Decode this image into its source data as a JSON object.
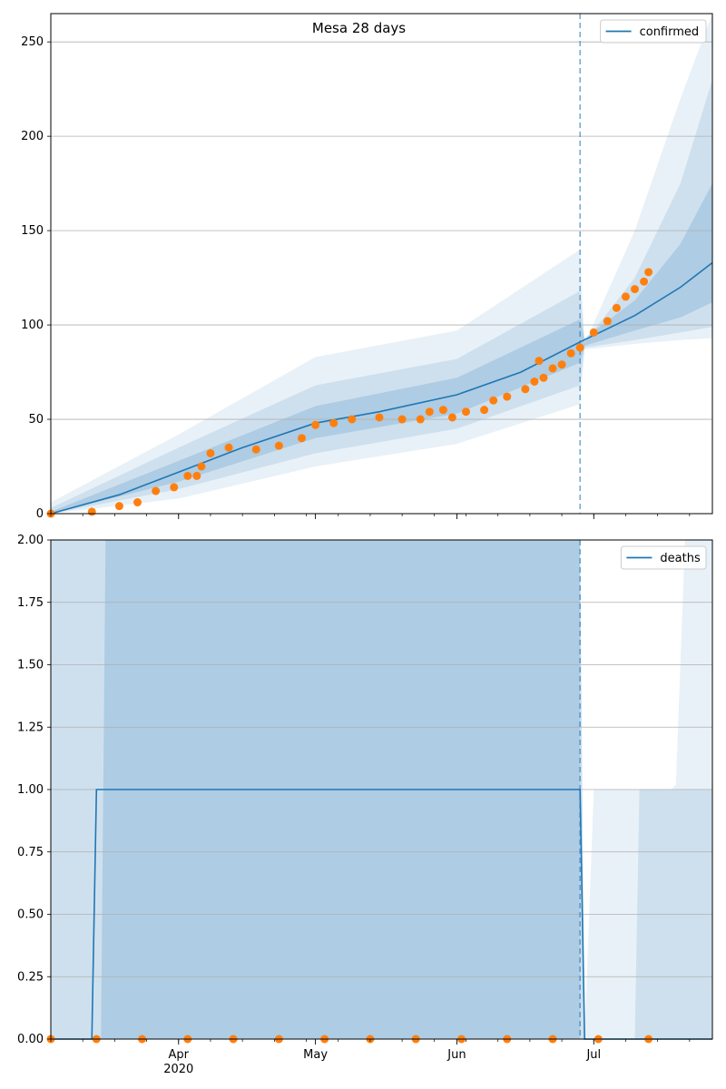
{
  "chart_data": [
    {
      "type": "line",
      "title": "Mesa 28 days",
      "xlabel": "",
      "ylabel": "",
      "x_ticks": [
        {
          "label": "Apr",
          "date": "2020-04-01"
        },
        {
          "label": "May",
          "date": "2020-05-01"
        },
        {
          "label": "Jun",
          "date": "2020-06-01"
        },
        {
          "label": "Jul",
          "date": "2020-07-01"
        }
      ],
      "x_year_label": "2020",
      "xlim": [
        "2020-03-04",
        "2020-07-27"
      ],
      "ylim": [
        0,
        265
      ],
      "y_ticks": [
        "0",
        "50",
        "100",
        "150",
        "200",
        "250"
      ],
      "grid": "horizontal",
      "legend_position": "top-right",
      "forecast_start": "2020-06-28",
      "colors": {
        "line": "#1f77b4",
        "points": "#ff7f0e",
        "band": "#1f77b4",
        "grid": "#b0b0b0"
      },
      "series": [
        {
          "name": "confirmed",
          "kind": "model-line",
          "points": [
            [
              "2020-03-04",
              0
            ],
            [
              "2020-03-19",
              10
            ],
            [
              "2020-04-01",
              22
            ],
            [
              "2020-04-15",
              35
            ],
            [
              "2020-05-01",
              48
            ],
            [
              "2020-05-15",
              54
            ],
            [
              "2020-06-01",
              63
            ],
            [
              "2020-06-15",
              75
            ],
            [
              "2020-06-28",
              91
            ],
            [
              "2020-07-10",
              105
            ],
            [
              "2020-07-20",
              120
            ],
            [
              "2020-07-27",
              133
            ]
          ]
        },
        {
          "kind": "observed",
          "points": [
            [
              "2020-03-04",
              0
            ],
            [
              "2020-03-13",
              1
            ],
            [
              "2020-03-19",
              4
            ],
            [
              "2020-03-23",
              6
            ],
            [
              "2020-03-27",
              12
            ],
            [
              "2020-03-31",
              14
            ],
            [
              "2020-04-03",
              20
            ],
            [
              "2020-04-05",
              20
            ],
            [
              "2020-04-06",
              25
            ],
            [
              "2020-04-08",
              32
            ],
            [
              "2020-04-12",
              35
            ],
            [
              "2020-04-18",
              34
            ],
            [
              "2020-04-23",
              36
            ],
            [
              "2020-04-28",
              40
            ],
            [
              "2020-05-01",
              47
            ],
            [
              "2020-05-05",
              48
            ],
            [
              "2020-05-09",
              50
            ],
            [
              "2020-05-15",
              51
            ],
            [
              "2020-05-20",
              50
            ],
            [
              "2020-05-24",
              50
            ],
            [
              "2020-05-26",
              54
            ],
            [
              "2020-05-29",
              55
            ],
            [
              "2020-05-31",
              51
            ],
            [
              "2020-06-03",
              54
            ],
            [
              "2020-06-07",
              55
            ],
            [
              "2020-06-09",
              60
            ],
            [
              "2020-06-12",
              62
            ],
            [
              "2020-06-16",
              66
            ],
            [
              "2020-06-18",
              70
            ],
            [
              "2020-06-19",
              81
            ],
            [
              "2020-06-20",
              72
            ],
            [
              "2020-06-22",
              77
            ],
            [
              "2020-06-24",
              79
            ],
            [
              "2020-06-26",
              85
            ],
            [
              "2020-06-28",
              88
            ],
            [
              "2020-07-01",
              96
            ],
            [
              "2020-07-04",
              102
            ],
            [
              "2020-07-06",
              109
            ],
            [
              "2020-07-08",
              115
            ],
            [
              "2020-07-10",
              119
            ],
            [
              "2020-07-12",
              123
            ],
            [
              "2020-07-13",
              128
            ]
          ]
        }
      ],
      "bands": [
        {
          "level": "outer",
          "dates": [
            "2020-03-04",
            "2020-04-01",
            "2020-05-01",
            "2020-06-01",
            "2020-06-28",
            "2020-06-29",
            "2020-07-10",
            "2020-07-20",
            "2020-07-27"
          ],
          "low": [
            0,
            8,
            25,
            37,
            58,
            87,
            90,
            92,
            93
          ],
          "high": [
            6,
            42,
            83,
            97,
            140,
            90,
            150,
            220,
            265
          ]
        },
        {
          "level": "mid",
          "dates": [
            "2020-03-04",
            "2020-04-01",
            "2020-05-01",
            "2020-06-01",
            "2020-06-28",
            "2020-06-29",
            "2020-07-10",
            "2020-07-20",
            "2020-07-27"
          ],
          "low": [
            0,
            13,
            32,
            45,
            68,
            88,
            92,
            96,
            99
          ],
          "high": [
            3,
            35,
            68,
            82,
            118,
            91,
            125,
            175,
            230
          ]
        },
        {
          "level": "inner",
          "dates": [
            "2020-03-04",
            "2020-04-01",
            "2020-05-01",
            "2020-06-01",
            "2020-06-28",
            "2020-06-29",
            "2020-07-10",
            "2020-07-20",
            "2020-07-27"
          ],
          "low": [
            0,
            17,
            40,
            53,
            80,
            89,
            97,
            104,
            112
          ],
          "high": [
            1,
            28,
            57,
            72,
            103,
            93,
            113,
            143,
            175
          ]
        }
      ]
    },
    {
      "type": "line",
      "title": "",
      "xlabel": "",
      "ylabel": "",
      "x_ticks": [
        {
          "label": "Apr",
          "date": "2020-04-01"
        },
        {
          "label": "May",
          "date": "2020-05-01"
        },
        {
          "label": "Jun",
          "date": "2020-06-01"
        },
        {
          "label": "Jul",
          "date": "2020-07-01"
        }
      ],
      "x_year_label": "2020",
      "xlim": [
        "2020-03-04",
        "2020-07-27"
      ],
      "ylim": [
        0,
        2
      ],
      "y_ticks": [
        "0.00",
        "0.25",
        "0.50",
        "0.75",
        "1.00",
        "1.25",
        "1.50",
        "1.75",
        "2.00"
      ],
      "grid": "horizontal",
      "legend_position": "top-right",
      "forecast_start": "2020-06-28",
      "colors": {
        "line": "#1f77b4",
        "points": "#ff7f0e",
        "band": "#1f77b4",
        "grid": "#b0b0b0"
      },
      "series": [
        {
          "name": "deaths",
          "kind": "model-line",
          "points": [
            [
              "2020-03-04",
              0
            ],
            [
              "2020-03-13",
              0
            ],
            [
              "2020-03-14",
              1
            ],
            [
              "2020-06-28",
              1
            ],
            [
              "2020-06-29",
              0
            ],
            [
              "2020-07-27",
              0
            ]
          ]
        },
        {
          "kind": "observed",
          "points": [
            [
              "2020-03-04",
              0
            ],
            [
              "2020-03-14",
              0
            ],
            [
              "2020-03-24",
              0
            ],
            [
              "2020-04-03",
              0
            ],
            [
              "2020-04-13",
              0
            ],
            [
              "2020-04-23",
              0
            ],
            [
              "2020-05-03",
              0
            ],
            [
              "2020-05-13",
              0
            ],
            [
              "2020-05-23",
              0
            ],
            [
              "2020-06-02",
              0
            ],
            [
              "2020-06-12",
              0
            ],
            [
              "2020-06-22",
              0
            ],
            [
              "2020-07-02",
              0
            ],
            [
              "2020-07-13",
              0
            ]
          ]
        }
      ],
      "bands": [
        {
          "level": "outer",
          "dates": [
            "2020-03-04",
            "2020-03-15",
            "2020-03-16",
            "2020-06-28",
            "2020-06-29",
            "2020-07-01",
            "2020-07-18",
            "2020-07-19",
            "2020-07-21",
            "2020-07-27"
          ],
          "low": [
            0,
            0,
            0,
            0,
            0,
            0,
            0,
            0,
            0,
            0
          ],
          "high": [
            2,
            2,
            2,
            2,
            0,
            1,
            1,
            1.02,
            2,
            2
          ]
        },
        {
          "level": "mid",
          "dates": [
            "2020-03-04",
            "2020-03-10",
            "2020-03-16",
            "2020-06-28",
            "2020-06-29",
            "2020-07-10",
            "2020-07-11",
            "2020-07-27"
          ],
          "low": [
            0,
            0,
            0,
            0,
            0,
            0,
            0,
            0
          ],
          "high": [
            2,
            2,
            2,
            2,
            0,
            0,
            1,
            1
          ]
        },
        {
          "level": "inner",
          "dates": [
            "2020-03-04",
            "2020-03-15",
            "2020-03-16",
            "2020-06-28"
          ],
          "low": [
            0,
            0,
            0,
            0
          ],
          "high": [
            0,
            0,
            2,
            2
          ]
        }
      ]
    }
  ]
}
